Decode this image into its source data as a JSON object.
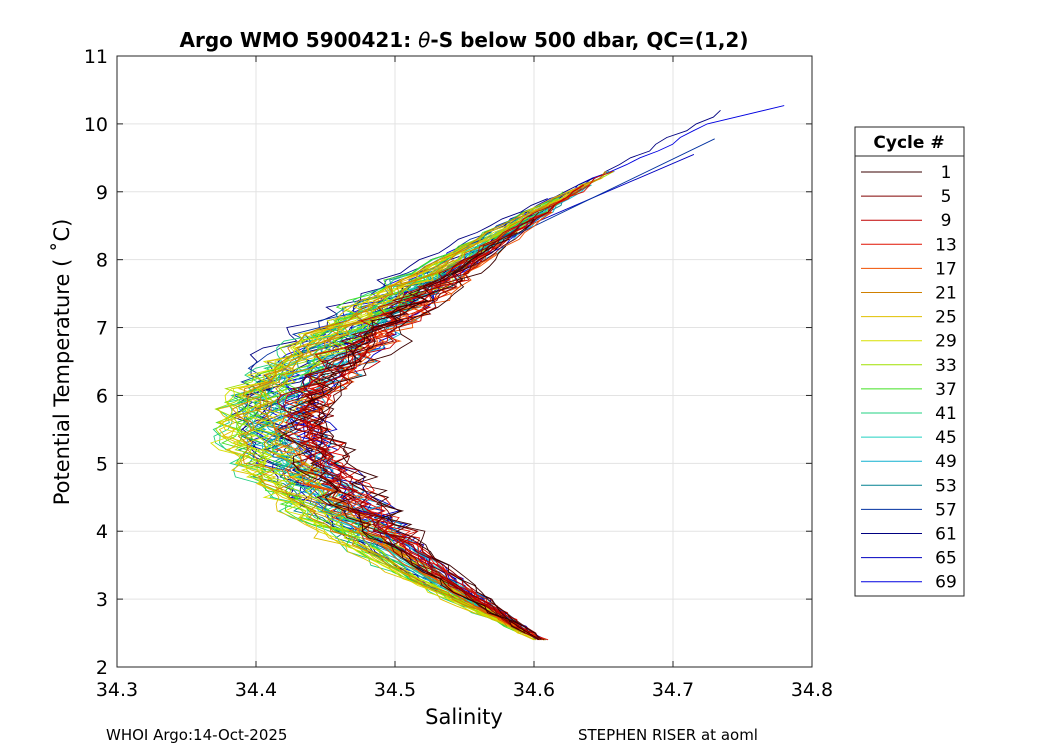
{
  "chart_data": {
    "type": "line",
    "title": "Argo WMO 5900421: θ-S below 500 dbar,  QC=(1,2)",
    "title_prefix": "Argo WMO 5900421: ",
    "title_theta": "θ",
    "title_suffix": "-S below 500 dbar,  QC=(1,2)",
    "xlabel": "Salinity",
    "ylabel": "Potential Temperature ( ˚C)",
    "xlim": [
      34.3,
      34.8
    ],
    "ylim": [
      2,
      11
    ],
    "xticks": [
      34.3,
      34.4,
      34.5,
      34.6,
      34.7,
      34.8
    ],
    "xtick_labels": [
      "34.3",
      "34.4",
      "34.5",
      "34.6",
      "34.7",
      "34.8"
    ],
    "yticks": [
      2,
      3,
      4,
      5,
      6,
      7,
      8,
      9,
      10,
      11
    ],
    "ytick_labels": [
      "2",
      "3",
      "4",
      "5",
      "6",
      "7",
      "8",
      "9",
      "10",
      "11"
    ],
    "grid": true,
    "legend_title": "Cycle #",
    "legend_position": "right-outside",
    "series": [
      {
        "name": "1",
        "color": "#3a0000"
      },
      {
        "name": "5",
        "color": "#800000"
      },
      {
        "name": "9",
        "color": "#c00000"
      },
      {
        "name": "13",
        "color": "#e01000"
      },
      {
        "name": "17",
        "color": "#f05000"
      },
      {
        "name": "21",
        "color": "#d08000"
      },
      {
        "name": "25",
        "color": "#e0c000"
      },
      {
        "name": "29",
        "color": "#d8e000"
      },
      {
        "name": "33",
        "color": "#a0e000"
      },
      {
        "name": "37",
        "color": "#40e020"
      },
      {
        "name": "41",
        "color": "#20d080"
      },
      {
        "name": "45",
        "color": "#20d0c0"
      },
      {
        "name": "49",
        "color": "#10b0d0"
      },
      {
        "name": "53",
        "color": "#008090"
      },
      {
        "name": "57",
        "color": "#0030a0"
      },
      {
        "name": "61",
        "color": "#000080"
      },
      {
        "name": "65",
        "color": "#0000c0"
      },
      {
        "name": "69",
        "color": "#0000e0"
      }
    ]
  },
  "footer": {
    "left": "WHOI Argo:14-Oct-2025",
    "right": "STEPHEN RISER at aoml"
  }
}
